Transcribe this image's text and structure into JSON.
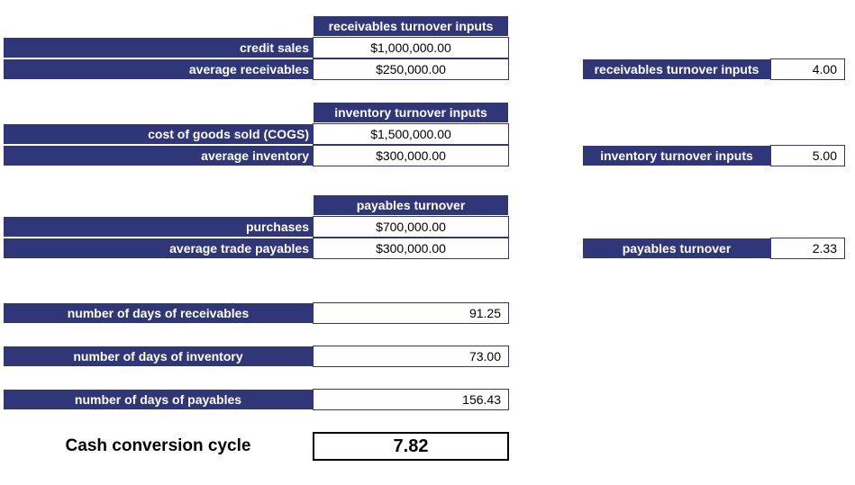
{
  "receivables": {
    "header": "receivables turnover inputs",
    "rows": [
      {
        "label": "credit sales",
        "value": "$1,000,000.00"
      },
      {
        "label": "average receivables",
        "value": "$250,000.00"
      }
    ],
    "result_label": "receivables turnover inputs",
    "result_value": "4.00"
  },
  "inventory": {
    "header": "inventory turnover inputs",
    "rows": [
      {
        "label": "cost of goods sold (COGS)",
        "value": "$1,500,000.00"
      },
      {
        "label": "average inventory",
        "value": "$300,000.00"
      }
    ],
    "result_label": "inventory turnover inputs",
    "result_value": "5.00"
  },
  "payables": {
    "header": "payables turnover",
    "rows": [
      {
        "label": "purchases",
        "value": "$700,000.00"
      },
      {
        "label": "average trade payables",
        "value": "$300,000.00"
      }
    ],
    "result_label": "payables turnover",
    "result_value": "2.33"
  },
  "days": [
    {
      "label": "number of days of receivables",
      "value": "91.25"
    },
    {
      "label": "number of days of inventory",
      "value": "73.00"
    },
    {
      "label": "number of days of payables",
      "value": "156.43"
    }
  ],
  "ccc": {
    "label": "Cash conversion cycle",
    "value": "7.82"
  },
  "colors": {
    "header_fill": "#2f3779",
    "header_text": "#ffffff"
  }
}
